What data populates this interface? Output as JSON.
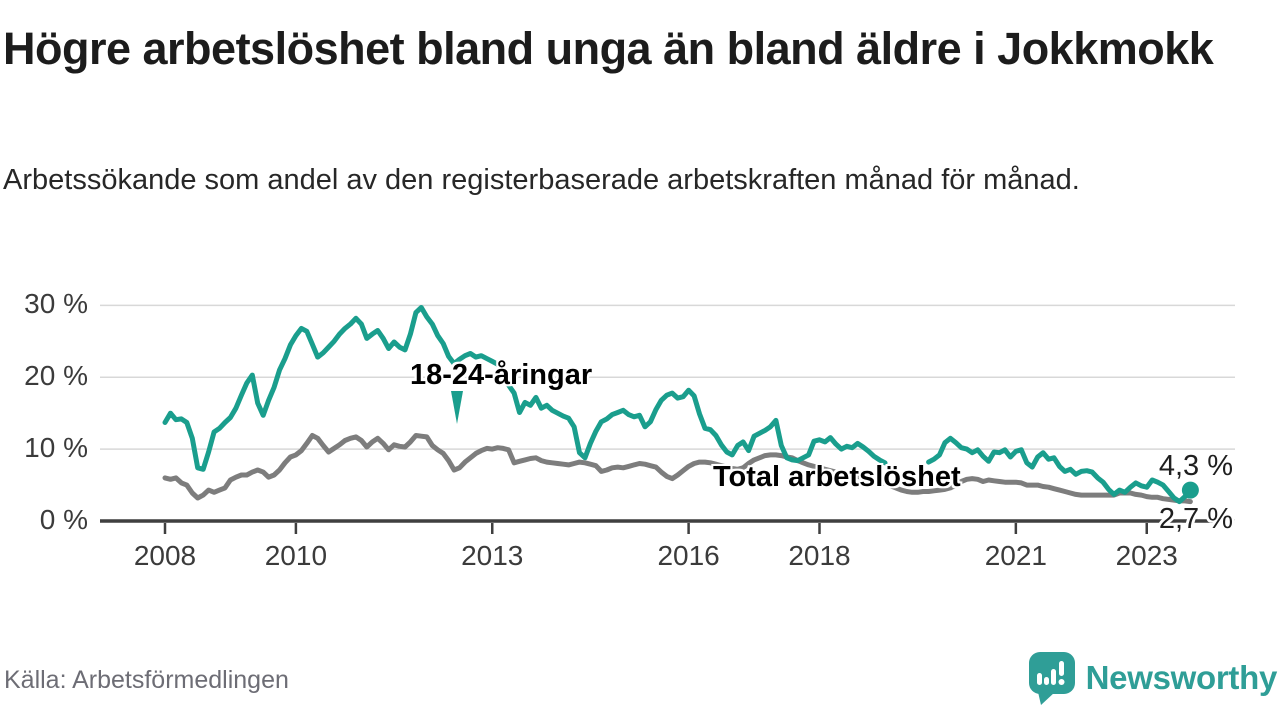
{
  "header": {
    "title": "Högre arbetslöshet bland unga än bland äldre i Jokkmokk",
    "subtitle": "Arbetssökande som andel av den registerbaserade arbetskraften månad för månad."
  },
  "footer": {
    "source": "Källa: Arbetsförmedlingen",
    "brand": "Newsworthy",
    "brand_color": "#2f9e97"
  },
  "chart_data": {
    "type": "line",
    "title": "Högre arbetslöshet bland unga än bland äldre i Jokkmokk",
    "xlabel": "",
    "ylabel": "",
    "unit": "%",
    "grid": "horizontal",
    "legend_position": "inline-labels",
    "xlim": [
      2007.0,
      2024.3
    ],
    "ylim": [
      0,
      32
    ],
    "x_ticks": [
      {
        "year": 2008,
        "label": "2008"
      },
      {
        "year": 2010,
        "label": "2010"
      },
      {
        "year": 2013,
        "label": "2013"
      },
      {
        "year": 2016,
        "label": "2016"
      },
      {
        "year": 2018,
        "label": "2018"
      },
      {
        "year": 2021,
        "label": "2021"
      },
      {
        "year": 2023,
        "label": "2023"
      }
    ],
    "y_ticks": [
      {
        "value": 30,
        "label": "30 %"
      },
      {
        "value": 20,
        "label": "20 %"
      },
      {
        "value": 10,
        "label": "10 %"
      },
      {
        "value": 0,
        "label": "0 %"
      }
    ],
    "series": [
      {
        "name": "Total arbetslöshet",
        "color": "#7d7d7d",
        "end_label": "2,7 %",
        "end_value": 2.7,
        "end_dot": false,
        "start_year": 2008,
        "points_per_year": 12,
        "values": [
          6.0,
          5.8,
          6.0,
          5.3,
          5.0,
          3.9,
          3.2,
          3.6,
          4.3,
          4.0,
          4.3,
          4.6,
          5.7,
          6.1,
          6.4,
          6.4,
          6.8,
          7.1,
          6.8,
          6.1,
          6.4,
          7.1,
          8.1,
          8.9,
          9.2,
          9.8,
          10.8,
          11.9,
          11.5,
          10.5,
          9.6,
          10.1,
          10.6,
          11.2,
          11.5,
          11.7,
          11.2,
          10.3,
          11.0,
          11.5,
          10.8,
          9.9,
          10.6,
          10.4,
          10.3,
          11.0,
          11.9,
          11.8,
          11.7,
          10.5,
          9.9,
          9.4,
          8.4,
          7.1,
          7.4,
          8.2,
          8.8,
          9.4,
          9.8,
          10.1,
          10.0,
          10.2,
          10.1,
          9.9,
          8.1,
          8.3,
          8.5,
          8.7,
          8.8,
          8.4,
          8.2,
          8.1,
          8.0,
          7.9,
          7.8,
          8.0,
          8.2,
          8.1,
          7.9,
          7.7,
          6.9,
          7.1,
          7.4,
          7.5,
          7.4,
          7.6,
          7.8,
          8.0,
          7.9,
          7.7,
          7.5,
          6.8,
          6.2,
          5.9,
          6.4,
          7.0,
          7.6,
          8.0,
          8.2,
          8.2,
          8.1,
          7.9,
          7.7,
          7.5,
          7.3,
          7.2,
          7.4,
          8.0,
          8.5,
          8.8,
          9.1,
          9.2,
          9.2,
          9.1,
          8.9,
          8.8,
          8.4,
          8.1,
          7.8,
          7.6,
          7.4,
          7.2,
          7.0,
          6.8,
          6.6,
          6.5,
          6.3,
          6.2,
          6.0,
          5.9,
          5.7,
          5.5,
          5.2,
          4.9,
          4.6,
          4.3,
          4.1,
          4.0,
          4.0,
          4.1,
          4.1,
          4.2,
          4.3,
          4.4,
          4.6,
          5.0,
          5.5,
          5.8,
          5.9,
          5.8,
          5.5,
          5.7,
          5.6,
          5.5,
          5.4,
          5.4,
          5.4,
          5.3,
          5.0,
          5.0,
          5.0,
          4.8,
          4.7,
          4.5,
          4.3,
          4.1,
          3.9,
          3.7,
          3.6,
          3.6,
          3.6,
          3.6,
          3.6,
          3.6,
          3.6,
          3.9,
          3.9,
          3.9,
          3.7,
          3.6,
          3.4,
          3.3,
          3.3,
          3.1,
          3.0,
          2.9,
          2.8,
          2.8,
          2.7
        ]
      },
      {
        "name": "18-24-åringar",
        "color": "#1a9e8d",
        "end_label": "4,3 %",
        "end_value": 4.3,
        "end_dot": true,
        "start_year": 2008,
        "points_per_year": 12,
        "values": [
          13.7,
          15.0,
          14.1,
          14.2,
          13.7,
          11.5,
          7.4,
          7.2,
          9.6,
          12.4,
          12.9,
          13.7,
          14.4,
          15.7,
          17.5,
          19.2,
          20.3,
          16.4,
          14.7,
          16.8,
          18.6,
          21.0,
          22.6,
          24.5,
          25.8,
          26.8,
          26.4,
          24.6,
          22.8,
          23.4,
          24.2,
          25.0,
          26.0,
          26.8,
          27.4,
          28.2,
          27.4,
          25.4,
          26.0,
          26.5,
          25.4,
          24.0,
          24.9,
          24.2,
          23.8,
          26.0,
          29.0,
          29.7,
          28.4,
          27.4,
          25.8,
          24.7,
          22.9,
          21.9,
          22.5,
          23.0,
          23.3,
          22.8,
          23.0,
          22.6,
          22.2,
          21.8,
          20.5,
          18.9,
          17.8,
          15.1,
          16.5,
          16.1,
          17.2,
          15.7,
          16.1,
          15.4,
          15.0,
          14.6,
          14.3,
          13.1,
          9.5,
          8.8,
          10.8,
          12.5,
          13.8,
          14.2,
          14.8,
          15.1,
          15.4,
          14.8,
          14.5,
          14.7,
          13.1,
          13.8,
          15.5,
          16.8,
          17.5,
          17.8,
          17.1,
          17.3,
          18.2,
          17.4,
          14.9,
          12.9,
          12.7,
          11.9,
          10.6,
          9.6,
          9.2,
          10.5,
          11.0,
          9.8,
          11.8,
          12.2,
          12.6,
          13.1,
          14.0,
          10.5,
          8.8,
          8.5,
          8.4,
          8.8,
          9.2,
          11.1,
          11.3,
          11.0,
          11.6,
          10.7,
          10.0,
          10.4,
          10.2,
          10.8,
          10.3,
          9.7,
          9.0,
          8.5,
          8.1,
          null,
          null,
          null,
          null,
          null,
          null,
          null,
          8.2,
          8.6,
          9.2,
          10.9,
          11.5,
          10.9,
          10.2,
          10.0,
          9.5,
          9.9,
          9.0,
          8.3,
          9.6,
          9.5,
          9.9,
          8.9,
          9.7,
          9.9,
          8.1,
          7.5,
          8.9,
          9.5,
          8.6,
          8.8,
          7.6,
          6.9,
          7.2,
          6.5,
          6.9,
          7.0,
          6.8,
          6.0,
          5.4,
          4.4,
          3.7,
          4.3,
          4.0,
          4.7,
          5.3,
          4.9,
          4.7,
          5.7,
          5.4,
          5.0,
          4.1,
          3.2,
          2.7,
          3.4,
          4.3
        ]
      }
    ]
  }
}
